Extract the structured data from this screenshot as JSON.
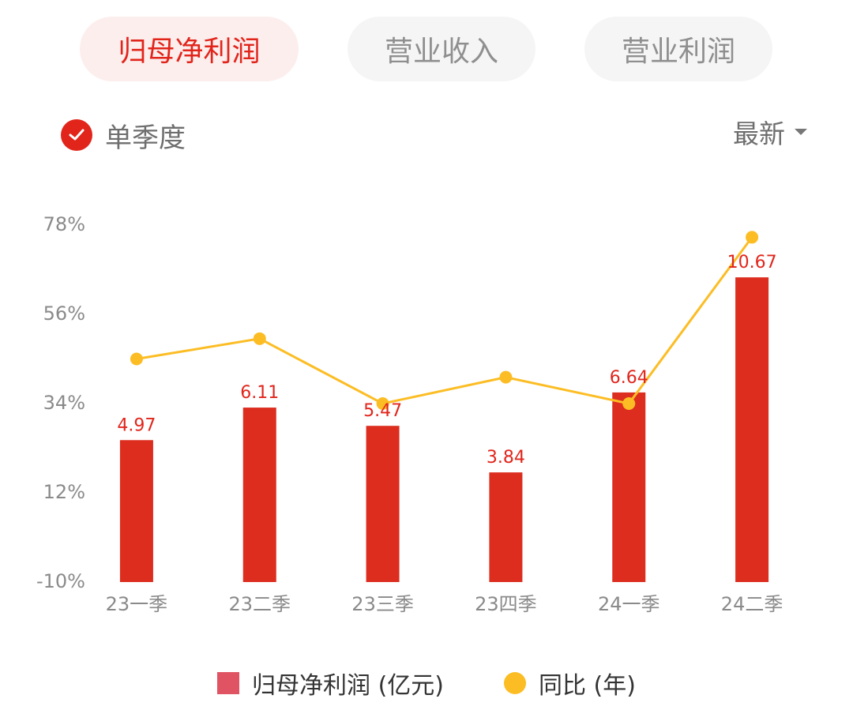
{
  "tabs": [
    {
      "label": "归母净利润",
      "active": true
    },
    {
      "label": "营业收入",
      "active": false
    },
    {
      "label": "营业利润",
      "active": false
    }
  ],
  "toggle": {
    "label": "单季度",
    "checked": true
  },
  "sort": {
    "label": "最新"
  },
  "legend": {
    "bar_label": "归母净利润 (亿元)",
    "line_label": "同比 (年)"
  },
  "colors": {
    "accent": "#e1251b",
    "bar": "#dc2d1f",
    "line": "#fcbd24",
    "legend_bar": "#e05362"
  },
  "chart_data": {
    "type": "bar",
    "categories": [
      "23一季",
      "23二季",
      "23三季",
      "23四季",
      "24一季",
      "24二季"
    ],
    "series": [
      {
        "name": "归母净利润 (亿元)",
        "type": "bar",
        "values": [
          4.97,
          6.11,
          5.47,
          3.84,
          6.64,
          10.67
        ],
        "data_labels": [
          "4.97",
          "6.11",
          "5.47",
          "3.84",
          "6.64",
          "10.67"
        ],
        "ylim": [
          0,
          12.5
        ]
      },
      {
        "name": "同比 (年)",
        "type": "line",
        "values": [
          45,
          50,
          34,
          40.5,
          34,
          75
        ],
        "unit": "%"
      }
    ],
    "y_ticks": [
      "78%",
      "56%",
      "34%",
      "12%",
      "-10%"
    ],
    "y_tick_values": [
      78,
      56,
      34,
      12,
      -10
    ],
    "ylim": [
      -10,
      78
    ],
    "grid": false,
    "legend_position": "bottom"
  }
}
